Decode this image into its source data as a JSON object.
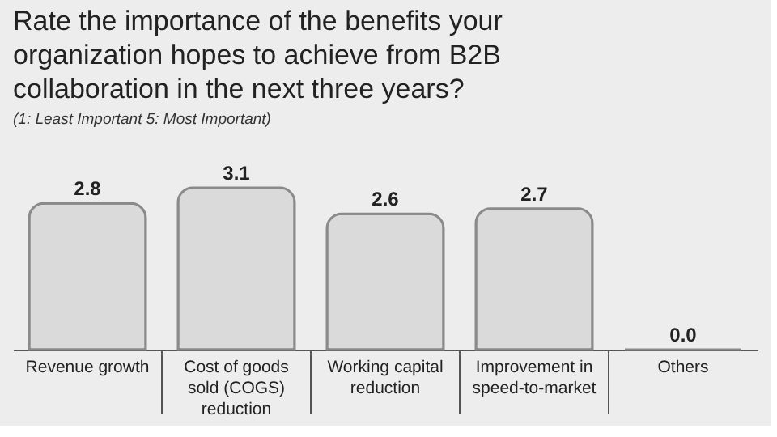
{
  "chart_data": {
    "type": "bar",
    "title": "Rate the importance of the benefits your organization hopes to achieve from B2B collaboration in the next three years?",
    "subtitle": "(1: Least Important    5: Most Important)",
    "categories": [
      "Revenue growth",
      "Cost of goods sold (COGS) reduction",
      "Working capital reduction",
      "Improvement in speed-to-market",
      "Others"
    ],
    "values": [
      2.8,
      3.1,
      2.6,
      2.7,
      0.0
    ],
    "color": "#dadada",
    "value_labels": [
      "2.8",
      "3.1",
      "2.6",
      "2.7",
      "0.0"
    ]
  }
}
